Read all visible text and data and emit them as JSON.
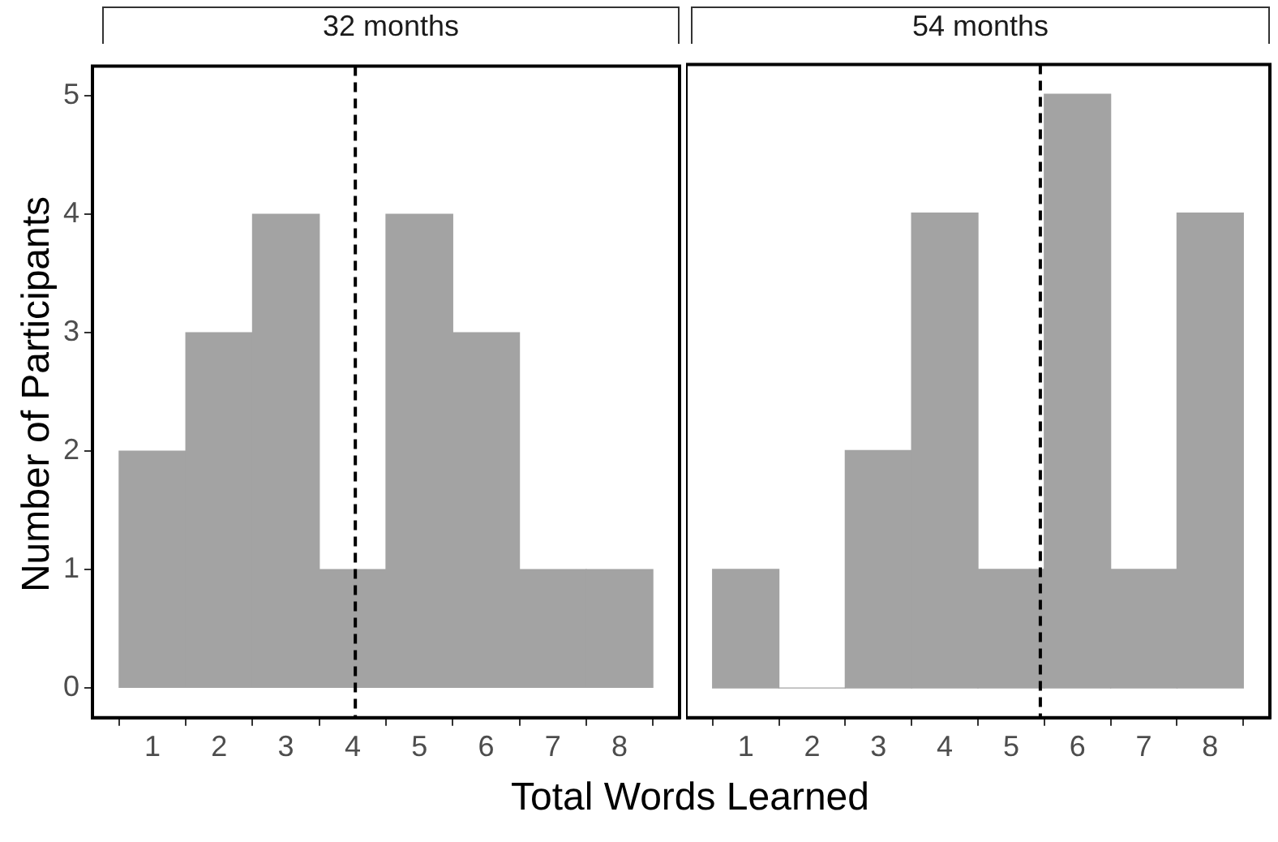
{
  "chart_data": [
    {
      "type": "histogram",
      "title": "32 months",
      "xlabel": "Total Words Learned",
      "ylabel": "Number of Participants",
      "bins": [
        0.5,
        1.5,
        2.5,
        3.5,
        4.5,
        5.5,
        6.5,
        7.5,
        8.5
      ],
      "values": [
        2,
        3,
        4,
        1,
        4,
        3,
        1,
        1
      ],
      "color": "#a3a3a3",
      "xlim": [
        0.1,
        8.9
      ],
      "xticks": [
        1,
        2,
        3,
        4,
        5,
        6,
        7,
        8
      ],
      "ylim": [
        -0.25,
        5.25
      ],
      "yticks": [
        0,
        1,
        2,
        3,
        4,
        5
      ],
      "grid": false,
      "ref_lines": [
        {
          "axis": "x",
          "value": 4.04,
          "line_style": "dashed",
          "color": "#000000"
        }
      ]
    },
    {
      "type": "histogram",
      "title": "54 months",
      "bins": [
        0.5,
        1.5,
        2.5,
        3.5,
        4.5,
        5.5,
        6.5,
        7.5,
        8.5
      ],
      "values": [
        1,
        0,
        2,
        4,
        1,
        5,
        1,
        4
      ],
      "color": "#a3a3a3",
      "xlim": [
        0.1,
        8.9
      ],
      "xticks": [
        1,
        2,
        3,
        4,
        5,
        6,
        7,
        8
      ],
      "ylim": [
        -0.25,
        5.25
      ],
      "yticks": [
        0,
        1,
        2,
        3,
        4,
        5
      ],
      "grid": false,
      "tick_labels": "x",
      "ref_lines": [
        {
          "axis": "x",
          "value": 5.44,
          "line_style": "dashed",
          "color": "#000000"
        }
      ]
    }
  ]
}
